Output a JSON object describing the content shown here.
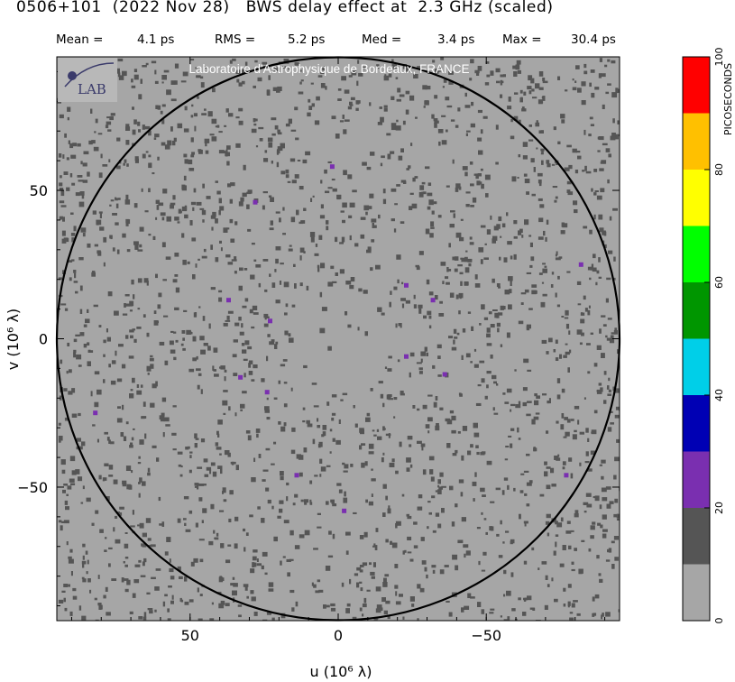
{
  "header": {
    "title": "0506+101  (2022 Nov 28)   BWS delay effect at  2.3 GHz (scaled)",
    "stats": [
      {
        "label": "Mean =",
        "value": "4.1 ps"
      },
      {
        "label": "RMS =",
        "value": "5.2 ps"
      },
      {
        "label": "Med =",
        "value": "3.4 ps"
      },
      {
        "label": "Max =",
        "value": "30.4 ps"
      }
    ]
  },
  "watermark": {
    "text": "Laboratoire d'Astrophysique de Bordeaux, FRANCE",
    "logo_text": "LAB"
  },
  "colors": {
    "background": "#a6a6a6",
    "speckle": "#555555",
    "purple": "#7a2fb0",
    "circle": "#000000"
  },
  "chart_data": {
    "type": "heatmap",
    "title": "BWS delay effect at 2.3 GHz (scaled)",
    "source": "0506+101",
    "date": "2022 Nov 28",
    "xlabel": "u  (10⁶ λ)",
    "ylabel": "v  (10⁶ λ)",
    "xlim": [
      95,
      -95
    ],
    "ylim": [
      -95,
      95
    ],
    "xticks": [
      {
        "v": 50,
        "label": "50"
      },
      {
        "v": 0,
        "label": "0"
      },
      {
        "v": -50,
        "label": "−50"
      }
    ],
    "yticks": [
      {
        "v": 50,
        "label": "50"
      },
      {
        "v": 0,
        "label": "0"
      },
      {
        "v": -50,
        "label": "−50"
      }
    ],
    "circle_radius": 95,
    "colorbar": {
      "label": "PICOSECONDS",
      "min": 0,
      "max": 100,
      "bins": [
        {
          "from": 0,
          "to": 10,
          "color": "#a6a6a6"
        },
        {
          "from": 10,
          "to": 20,
          "color": "#555555"
        },
        {
          "from": 20,
          "to": 30,
          "color": "#7a2fb0"
        },
        {
          "from": 30,
          "to": 40,
          "color": "#0000b4"
        },
        {
          "from": 40,
          "to": 50,
          "color": "#00cfe8"
        },
        {
          "from": 50,
          "to": 60,
          "color": "#009600"
        },
        {
          "from": 60,
          "to": 70,
          "color": "#00ff00"
        },
        {
          "from": 70,
          "to": 80,
          "color": "#ffff00"
        },
        {
          "from": 80,
          "to": 90,
          "color": "#ffc000"
        },
        {
          "from": 90,
          "to": 100,
          "color": "#ff0000"
        }
      ],
      "ticks": [
        0,
        20,
        40,
        60,
        80,
        100
      ]
    },
    "high_delay_points": [
      {
        "u": 37,
        "v": 13
      },
      {
        "u": 23,
        "v": 6
      },
      {
        "u": 33,
        "v": -13
      },
      {
        "u": 24,
        "v": -18
      },
      {
        "u": -23,
        "v": 18
      },
      {
        "u": -32,
        "v": 13
      },
      {
        "u": -23,
        "v": -6
      },
      {
        "u": -36,
        "v": -12
      },
      {
        "u": 82,
        "v": -25
      },
      {
        "u": -82,
        "v": 25
      },
      {
        "u": 2,
        "v": 58
      },
      {
        "u": -2,
        "v": -58
      },
      {
        "u": 14,
        "v": -46
      },
      {
        "u": -77,
        "v": -46
      },
      {
        "u": 28,
        "v": 46
      }
    ]
  }
}
